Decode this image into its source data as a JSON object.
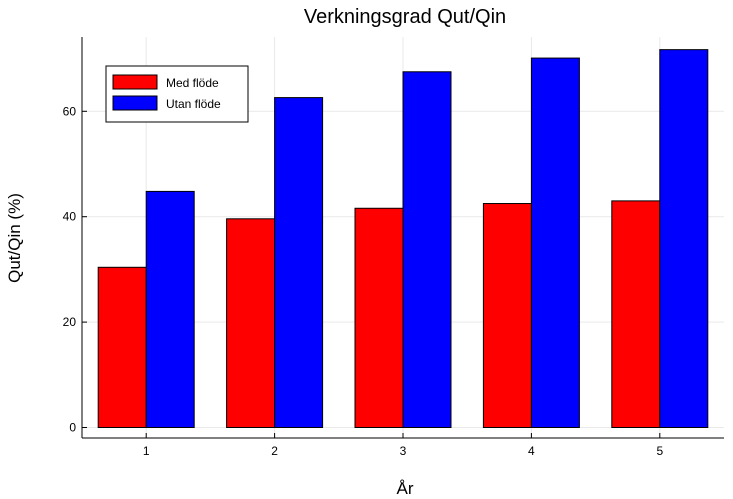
{
  "chart_data": {
    "type": "bar",
    "title": "Verkningsgrad Qut/Qin",
    "xlabel": "År",
    "ylabel": "Qut/Qin (%)",
    "categories": [
      "1",
      "2",
      "3",
      "4",
      "5"
    ],
    "series": [
      {
        "name": "Med flöde",
        "color": "#ff0000",
        "values": [
          30.4,
          39.6,
          41.6,
          42.5,
          43.0
        ]
      },
      {
        "name": "Utan flöde",
        "color": "#0000ff",
        "values": [
          44.8,
          62.6,
          67.5,
          70.1,
          71.7
        ]
      }
    ],
    "ylim": [
      0,
      72
    ],
    "yticks": [
      0,
      20,
      40,
      60
    ],
    "grid": true,
    "legend_position": "top-left"
  }
}
